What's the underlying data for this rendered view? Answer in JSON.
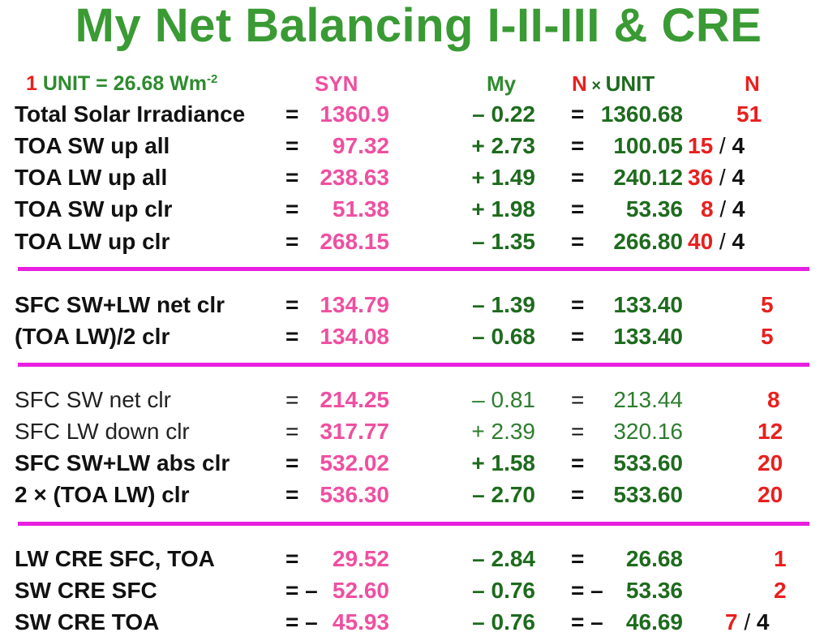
{
  "title": "My Net Balancing I-II-III & CRE",
  "header": {
    "unit_num": "1",
    "unit_text": " UNIT = 26.68 Wm",
    "unit_exp": "-2",
    "syn": "SYN",
    "my": "My",
    "n_unit_n": "N",
    "n_unit_x": " × ",
    "n_unit_text": "UNIT",
    "n": "N"
  },
  "rows": [
    {
      "label": "Total Solar Irradiance",
      "eq": "=",
      "syn": "1360.9",
      "my": "– 0.22",
      "peq": "= ",
      "product": "1360.68",
      "n": "51",
      "div": ""
    },
    {
      "label": "TOA SW up all",
      "eq": "=",
      "syn": "97.32",
      "my": "+ 2.73",
      "peq": "=",
      "product": "100.05",
      "n": "15",
      "div": "4"
    },
    {
      "label": "TOA LW up all",
      "eq": "=",
      "syn": "238.63",
      "my": "+ 1.49",
      "peq": "=",
      "product": "240.12",
      "n": "36",
      "div": "4"
    },
    {
      "label": "TOA SW up clr",
      "eq": "=",
      "syn": "51.38",
      "my": "+ 1.98",
      "peq": "=",
      "product": "53.36",
      "n": "8",
      "div": "4"
    },
    {
      "label": "TOA LW up clr",
      "eq": "=",
      "syn": "268.15",
      "my": "– 1.35",
      "peq": "=",
      "product": "266.80",
      "n": "40",
      "div": "4"
    },
    {
      "label": "SFC SW+LW net clr",
      "eq": "=",
      "syn": "134.79",
      "my": "– 1.39",
      "peq": "=",
      "product": "133.40",
      "n": "5",
      "div": ""
    },
    {
      "label": "(TOA LW)/2 clr",
      "eq": "=",
      "syn": "134.08",
      "my": "– 0.68",
      "peq": "=",
      "product": "133.40",
      "n": "5",
      "div": ""
    },
    {
      "label": "SFC SW net clr",
      "eq": "=",
      "syn": "214.25",
      "my": "– 0.81",
      "peq": "=",
      "product": "213.44",
      "n": "8",
      "div": ""
    },
    {
      "label": "SFC LW down clr",
      "eq": "=",
      "syn": "317.77",
      "my": "+ 2.39",
      "peq": "=",
      "product": "320.16",
      "n": "12",
      "div": ""
    },
    {
      "label": "SFC SW+LW abs clr",
      "eq": "=",
      "syn": "532.02",
      "my": "+ 1.58",
      "peq": "=",
      "product": "533.60",
      "n": "20",
      "div": ""
    },
    {
      "label": "2 × (TOA LW) clr",
      "eq": "=",
      "syn": "536.30",
      "my": "– 2.70",
      "peq": "=",
      "product": "533.60",
      "n": "20",
      "div": ""
    },
    {
      "label": "LW CRE SFC, TOA",
      "eq": "=",
      "syn": "29.52",
      "my": "– 2.84",
      "peq": "=",
      "product": "26.68",
      "n": "1",
      "div": ""
    },
    {
      "label": "SW CRE SFC",
      "eq": "= –",
      "syn": "52.60",
      "my": "– 0.76",
      "peq": "= –",
      "product": "53.36",
      "n": "2",
      "div": ""
    },
    {
      "label": "SW CRE TOA",
      "eq": "= –",
      "syn": "45.93",
      "my": "– 0.76",
      "peq": "= –",
      "product": "46.69",
      "n": "7",
      "div": "4"
    }
  ],
  "colors": {
    "title": "#3a9a34",
    "syn": "#ef4fa0",
    "my": "#1e6b1e",
    "n": "#e8201e",
    "separator": "#e81fe0"
  }
}
